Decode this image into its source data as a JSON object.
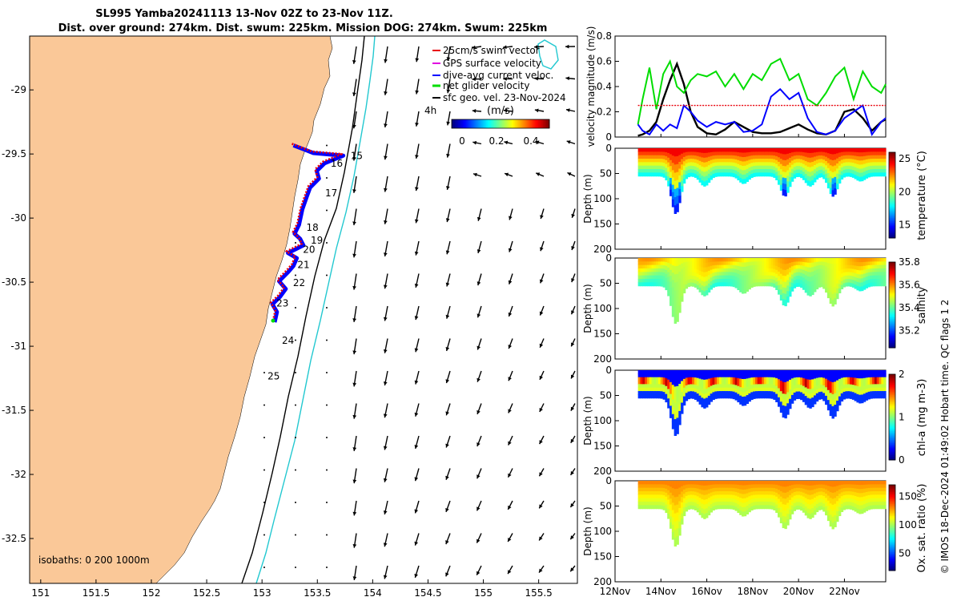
{
  "title": {
    "line1": "SL995 Yamba20241113 13-Nov 02Z to 23-Nov 11Z.",
    "line2": "Dist. over ground: 274km. Dist. swum: 225km. Mission DOG: 274km. Swum: 225km"
  },
  "map": {
    "lon_ticks": [
      "151",
      "151.5",
      "152",
      "152.5",
      "153",
      "153.5",
      "154",
      "154.5",
      "155",
      "155.5"
    ],
    "lat_ticks": [
      "-29",
      "-29.5",
      "-30",
      "-30.5",
      "-31",
      "-31.5",
      "-32",
      "-32.5"
    ],
    "lon_range": [
      150.9,
      155.85
    ],
    "lat_range": [
      -28.58,
      -32.85
    ],
    "isobaths_label": "isobaths: 0   200  1000m",
    "time_label": "4h",
    "day_labels": [
      {
        "text": "15",
        "lon": 153.8,
        "lat": -29.54
      },
      {
        "text": "16",
        "lon": 153.62,
        "lat": -29.6
      },
      {
        "text": "17",
        "lon": 153.57,
        "lat": -29.83
      },
      {
        "text": "18",
        "lon": 153.4,
        "lat": -30.1
      },
      {
        "text": "19",
        "lon": 153.44,
        "lat": -30.2
      },
      {
        "text": "20",
        "lon": 153.37,
        "lat": -30.27
      },
      {
        "text": "21",
        "lon": 153.32,
        "lat": -30.39
      },
      {
        "text": "22",
        "lon": 153.28,
        "lat": -30.53
      },
      {
        "text": "23",
        "lon": 153.13,
        "lat": -30.69
      },
      {
        "text": "24",
        "lon": 153.18,
        "lat": -30.98
      },
      {
        "text": "25",
        "lon": 153.05,
        "lat": -31.26
      }
    ],
    "glider_track": [
      [
        153.27,
        -29.42
      ],
      [
        153.45,
        -29.48
      ],
      [
        153.72,
        -29.5
      ],
      [
        153.55,
        -29.56
      ],
      [
        153.48,
        -29.62
      ],
      [
        153.5,
        -29.68
      ],
      [
        153.42,
        -29.75
      ],
      [
        153.39,
        -29.82
      ],
      [
        153.35,
        -29.92
      ],
      [
        153.32,
        -30.04
      ],
      [
        153.28,
        -30.11
      ],
      [
        153.33,
        -30.15
      ],
      [
        153.36,
        -30.2
      ],
      [
        153.22,
        -30.26
      ],
      [
        153.3,
        -30.3
      ],
      [
        153.27,
        -30.36
      ],
      [
        153.22,
        -30.41
      ],
      [
        153.14,
        -30.48
      ],
      [
        153.2,
        -30.54
      ],
      [
        153.15,
        -30.6
      ],
      [
        153.08,
        -30.66
      ],
      [
        153.12,
        -30.72
      ],
      [
        153.1,
        -30.8
      ]
    ],
    "legend": {
      "items": [
        {
          "label": "25cm/s swim vector",
          "color": "#e8000b"
        },
        {
          "label": "GPS surface velocity",
          "color": "#e000e0"
        },
        {
          "label": "dive-avg current veloc.",
          "color": "#0000ff"
        },
        {
          "label": "net glider velocity",
          "color": "#00dd00"
        },
        {
          "label": "sfc geo. vel. 23-Nov-2024",
          "color": "#000000"
        }
      ]
    },
    "colorbar": {
      "title": "(m/s)",
      "ticks": [
        "0",
        "0.2",
        "0.4"
      ],
      "range": [
        0,
        0.5
      ]
    },
    "colors": {
      "land": "#fac898",
      "isobath_200": "#000000",
      "isobath_1000": "#22c8d0",
      "track": "#e8000b",
      "track_under": "#0000ff"
    }
  },
  "chart_data": [
    {
      "type": "line",
      "name": "velocity-magnitude",
      "ylabel": "velocity magnitude (m/s)",
      "ylim": [
        0,
        0.8
      ],
      "yticks": [
        "0",
        "0.2",
        "0.4",
        "0.6",
        "0.8"
      ],
      "xlim": [
        12.0,
        23.8
      ],
      "x": [
        13.0,
        13.2,
        13.5,
        13.8,
        14.1,
        14.4,
        14.7,
        15.0,
        15.3,
        15.6,
        16.0,
        16.4,
        16.8,
        17.2,
        17.6,
        18.0,
        18.4,
        18.8,
        19.2,
        19.6,
        20.0,
        20.4,
        20.8,
        21.2,
        21.6,
        22.0,
        22.4,
        22.8,
        23.2,
        23.6,
        23.8
      ],
      "series": [
        {
          "name": "black",
          "color": "#000000",
          "values": [
            0.01,
            0.02,
            0.05,
            0.12,
            0.3,
            0.45,
            0.58,
            0.42,
            0.2,
            0.08,
            0.03,
            0.02,
            0.06,
            0.12,
            0.08,
            0.04,
            0.03,
            0.03,
            0.04,
            0.07,
            0.1,
            0.06,
            0.03,
            0.02,
            0.05,
            0.2,
            0.22,
            0.15,
            0.05,
            0.12,
            0.14
          ]
        },
        {
          "name": "green",
          "color": "#00dd00",
          "values": [
            0.1,
            0.3,
            0.55,
            0.22,
            0.5,
            0.6,
            0.4,
            0.35,
            0.45,
            0.5,
            0.48,
            0.52,
            0.4,
            0.5,
            0.38,
            0.5,
            0.45,
            0.58,
            0.62,
            0.45,
            0.5,
            0.3,
            0.25,
            0.35,
            0.48,
            0.55,
            0.3,
            0.52,
            0.4,
            0.35,
            0.42
          ]
        },
        {
          "name": "blue",
          "color": "#0000ff",
          "values": [
            0.1,
            0.05,
            0.02,
            0.1,
            0.05,
            0.1,
            0.07,
            0.25,
            0.2,
            0.13,
            0.08,
            0.12,
            0.1,
            0.12,
            0.04,
            0.05,
            0.1,
            0.32,
            0.38,
            0.3,
            0.35,
            0.15,
            0.04,
            0.02,
            0.05,
            0.15,
            0.2,
            0.25,
            0.02,
            0.12,
            0.15
          ]
        },
        {
          "name": "red",
          "color": "#e8000b",
          "values": [
            0.25,
            0.25,
            0.25,
            0.25,
            0.25,
            0.25,
            0.25,
            0.25,
            0.25,
            0.25,
            0.25,
            0.25,
            0.25,
            0.25,
            0.25,
            0.25,
            0.25,
            0.25,
            0.25,
            0.25,
            0.25,
            0.25,
            0.25,
            0.25,
            0.25,
            0.25,
            0.25,
            0.25,
            0.25,
            0.25,
            0.25
          ]
        }
      ]
    },
    {
      "type": "heatmap",
      "name": "temperature",
      "ylabel": "Depth (m)",
      "cbar_label": "temperature (°C)",
      "cbar_ticks": [
        "25",
        "20",
        "15"
      ],
      "cbar_range": [
        13,
        26
      ],
      "surface_value": 24.5,
      "deep_value": 17,
      "yticks": [
        "0",
        "50",
        "100",
        "150",
        "200"
      ]
    },
    {
      "type": "heatmap",
      "name": "salinity",
      "ylabel": "Depth (m)",
      "cbar_label": "salinity",
      "cbar_ticks": [
        "35.8",
        "35.6",
        "35.4",
        "35.2"
      ],
      "cbar_range": [
        35.05,
        35.8
      ],
      "surface_value": 35.55,
      "deep_value": 35.4,
      "yticks": [
        "0",
        "50",
        "100",
        "150",
        "200"
      ]
    },
    {
      "type": "heatmap",
      "name": "chl-a",
      "ylabel": "Depth (m)",
      "cbar_label": "chl-a (mg m-3)",
      "cbar_ticks": [
        "2",
        "1",
        "0"
      ],
      "cbar_range": [
        0,
        2
      ],
      "surface_value": 0.25,
      "deep_value": 0.9,
      "yticks": [
        "0",
        "50",
        "100",
        "150",
        "200"
      ]
    },
    {
      "type": "heatmap",
      "name": "oxygen",
      "ylabel": "Depth (m)",
      "cbar_label": "Ox. sat. ratio (%)",
      "cbar_ticks": [
        "150",
        "100",
        "50"
      ],
      "cbar_range": [
        20,
        170
      ],
      "surface_value": 130,
      "deep_value": 105,
      "yticks": [
        "0",
        "50",
        "100",
        "150",
        "200"
      ]
    }
  ],
  "time_axis": {
    "xlim": [
      12.0,
      23.8
    ],
    "ticks": [
      {
        "label": "12Nov",
        "day": 12
      },
      {
        "label": "14Nov",
        "day": 14
      },
      {
        "label": "16Nov",
        "day": 16
      },
      {
        "label": "18Nov",
        "day": 18
      },
      {
        "label": "20Nov",
        "day": 20
      },
      {
        "label": "22Nov",
        "day": 22
      }
    ],
    "data_start": 13.0,
    "data_end": 23.8,
    "dips": [
      {
        "day": 14.65,
        "depth": 130
      },
      {
        "day": 15.9,
        "depth": 75
      },
      {
        "day": 17.6,
        "depth": 70
      },
      {
        "day": 19.4,
        "depth": 95
      },
      {
        "day": 20.5,
        "depth": 75
      },
      {
        "day": 21.5,
        "depth": 95
      },
      {
        "day": 22.7,
        "depth": 65
      }
    ],
    "base_depth": 55
  },
  "side_note": {
    "qc_text": "© IMOS 18-Dec-2024 01:49:02 Hobart time. QC flags 1  2"
  }
}
